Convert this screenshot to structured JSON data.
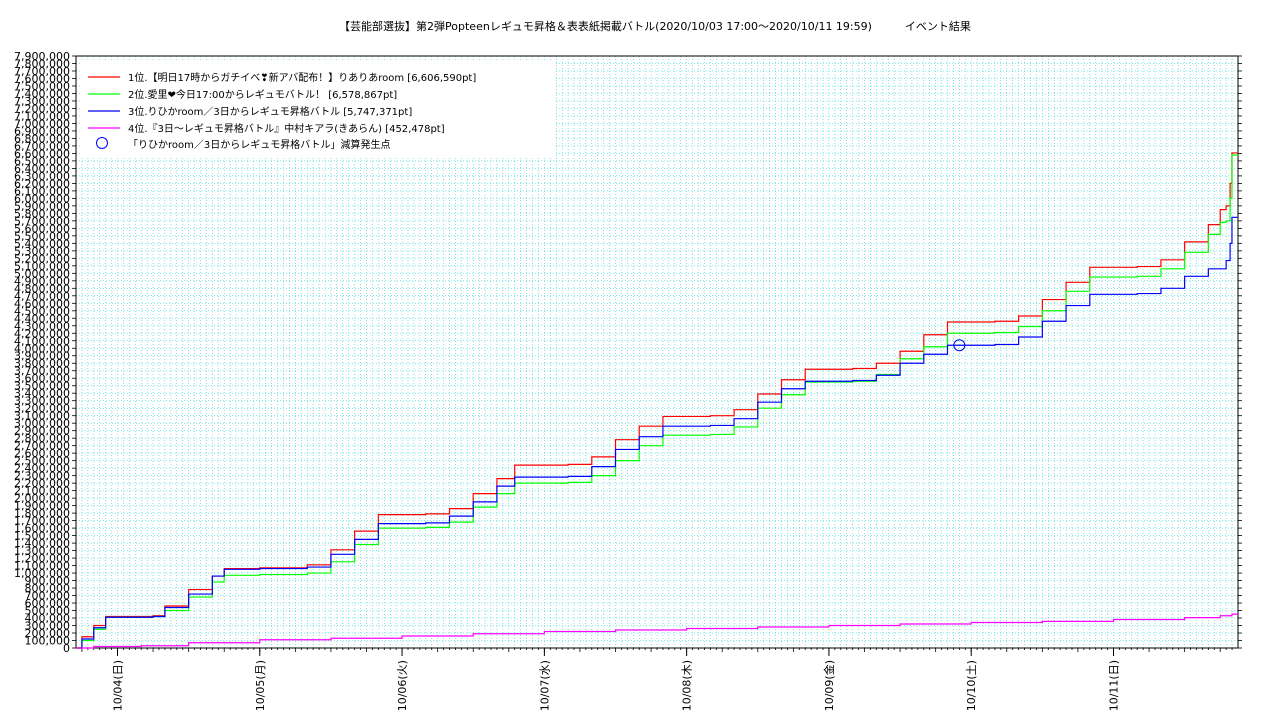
{
  "chart_data": {
    "type": "line",
    "title": "【芸能部選抜】第2弾Popteenレギュモ昇格＆表表紙掲載バトル(2020/10/03 17:00～2020/10/11 19:59)　　　イベント結果",
    "xlabel": "",
    "ylabel": "",
    "xlim": [
      "2020-10-03 17:00",
      "2020-10-11 21:00"
    ],
    "ylim": [
      0,
      7900000
    ],
    "y_tick_step": 100000,
    "x_tick_labels": [
      "10/04(日)",
      "10/05(月)",
      "10/06(火)",
      "10/07(水)",
      "10/08(木)",
      "10/09(金)",
      "10/10(土)",
      "10/11(日)"
    ],
    "x_tick_times": [
      "2020-10-04 00:00",
      "2020-10-05 00:00",
      "2020-10-06 00:00",
      "2020-10-07 00:00",
      "2020-10-08 00:00",
      "2020-10-09 00:00",
      "2020-10-10 00:00",
      "2020-10-11 00:00"
    ],
    "grid": true,
    "legend_position": "top-left",
    "series": [
      {
        "name": "1位.【明日17時からガチイベ❣新アバ配布！】りありあroom [6,606,590pt]",
        "color": "#ff0000",
        "step": true,
        "points": [
          [
            "2020-10-03 17:00",
            0
          ],
          [
            "2020-10-03 18:00",
            150000
          ],
          [
            "2020-10-03 20:00",
            300000
          ],
          [
            "2020-10-03 22:00",
            420000
          ],
          [
            "2020-10-04 06:00",
            430000
          ],
          [
            "2020-10-04 08:00",
            560000
          ],
          [
            "2020-10-04 12:00",
            780000
          ],
          [
            "2020-10-04 16:00",
            960000
          ],
          [
            "2020-10-04 18:00",
            1060000
          ],
          [
            "2020-10-05 00:00",
            1070000
          ],
          [
            "2020-10-05 08:00",
            1110000
          ],
          [
            "2020-10-05 12:00",
            1310000
          ],
          [
            "2020-10-05 16:00",
            1560000
          ],
          [
            "2020-10-05 20:00",
            1780000
          ],
          [
            "2020-10-06 04:00",
            1790000
          ],
          [
            "2020-10-06 08:00",
            1860000
          ],
          [
            "2020-10-06 12:00",
            2060000
          ],
          [
            "2020-10-06 16:00",
            2260000
          ],
          [
            "2020-10-06 19:00",
            2440000
          ],
          [
            "2020-10-07 04:00",
            2450000
          ],
          [
            "2020-10-07 08:00",
            2550000
          ],
          [
            "2020-10-07 12:00",
            2780000
          ],
          [
            "2020-10-07 16:00",
            2960000
          ],
          [
            "2020-10-07 20:00",
            3090000
          ],
          [
            "2020-10-08 04:00",
            3100000
          ],
          [
            "2020-10-08 08:00",
            3180000
          ],
          [
            "2020-10-08 12:00",
            3390000
          ],
          [
            "2020-10-08 16:00",
            3580000
          ],
          [
            "2020-10-08 20:00",
            3720000
          ],
          [
            "2020-10-09 04:00",
            3730000
          ],
          [
            "2020-10-09 08:00",
            3800000
          ],
          [
            "2020-10-09 12:00",
            3960000
          ],
          [
            "2020-10-09 16:00",
            4180000
          ],
          [
            "2020-10-09 20:00",
            4350000
          ],
          [
            "2020-10-10 04:00",
            4360000
          ],
          [
            "2020-10-10 08:00",
            4430000
          ],
          [
            "2020-10-10 12:00",
            4650000
          ],
          [
            "2020-10-10 16:00",
            4880000
          ],
          [
            "2020-10-10 20:00",
            5080000
          ],
          [
            "2020-10-11 04:00",
            5090000
          ],
          [
            "2020-10-11 08:00",
            5180000
          ],
          [
            "2020-10-11 12:00",
            5420000
          ],
          [
            "2020-10-11 16:00",
            5650000
          ],
          [
            "2020-10-11 18:00",
            5850000
          ],
          [
            "2020-10-11 19:00",
            5900000
          ],
          [
            "2020-10-11 19:40",
            6200000
          ],
          [
            "2020-10-11 19:59",
            6606590
          ],
          [
            "2020-10-11 21:00",
            6606590
          ]
        ]
      },
      {
        "name": "2位.愛里❤今日17:00からレギュモバトル！ [6,578,867pt]",
        "color": "#00ff00",
        "step": true,
        "points": [
          [
            "2020-10-03 17:00",
            0
          ],
          [
            "2020-10-03 18:00",
            100000
          ],
          [
            "2020-10-03 20:00",
            250000
          ],
          [
            "2020-10-03 22:00",
            410000
          ],
          [
            "2020-10-04 06:00",
            420000
          ],
          [
            "2020-10-04 08:00",
            500000
          ],
          [
            "2020-10-04 12:00",
            680000
          ],
          [
            "2020-10-04 16:00",
            880000
          ],
          [
            "2020-10-04 18:00",
            970000
          ],
          [
            "2020-10-05 00:00",
            980000
          ],
          [
            "2020-10-05 08:00",
            1000000
          ],
          [
            "2020-10-05 12:00",
            1150000
          ],
          [
            "2020-10-05 16:00",
            1380000
          ],
          [
            "2020-10-05 20:00",
            1600000
          ],
          [
            "2020-10-06 04:00",
            1610000
          ],
          [
            "2020-10-06 08:00",
            1680000
          ],
          [
            "2020-10-06 12:00",
            1880000
          ],
          [
            "2020-10-06 16:00",
            2060000
          ],
          [
            "2020-10-06 19:00",
            2200000
          ],
          [
            "2020-10-07 04:00",
            2210000
          ],
          [
            "2020-10-07 08:00",
            2300000
          ],
          [
            "2020-10-07 12:00",
            2500000
          ],
          [
            "2020-10-07 16:00",
            2700000
          ],
          [
            "2020-10-07 20:00",
            2840000
          ],
          [
            "2020-10-08 04:00",
            2850000
          ],
          [
            "2020-10-08 08:00",
            2950000
          ],
          [
            "2020-10-08 12:00",
            3200000
          ],
          [
            "2020-10-08 16:00",
            3380000
          ],
          [
            "2020-10-08 20:00",
            3550000
          ],
          [
            "2020-10-09 04:00",
            3560000
          ],
          [
            "2020-10-09 08:00",
            3650000
          ],
          [
            "2020-10-09 12:00",
            3860000
          ],
          [
            "2020-10-09 16:00",
            4020000
          ],
          [
            "2020-10-09 20:00",
            4200000
          ],
          [
            "2020-10-10 04:00",
            4210000
          ],
          [
            "2020-10-10 08:00",
            4290000
          ],
          [
            "2020-10-10 12:00",
            4500000
          ],
          [
            "2020-10-10 16:00",
            4760000
          ],
          [
            "2020-10-10 20:00",
            4950000
          ],
          [
            "2020-10-11 04:00",
            4960000
          ],
          [
            "2020-10-11 08:00",
            5060000
          ],
          [
            "2020-10-11 12:00",
            5280000
          ],
          [
            "2020-10-11 16:00",
            5520000
          ],
          [
            "2020-10-11 18:00",
            5680000
          ],
          [
            "2020-10-11 19:00",
            5700000
          ],
          [
            "2020-10-11 19:40",
            6000000
          ],
          [
            "2020-10-11 19:59",
            6578867
          ],
          [
            "2020-10-11 21:00",
            6578867
          ]
        ]
      },
      {
        "name": "3位.りひかroom／3日からレギュモ昇格バトル [5,747,371pt]",
        "color": "#0000ff",
        "step": true,
        "points": [
          [
            "2020-10-03 17:00",
            0
          ],
          [
            "2020-10-03 18:00",
            120000
          ],
          [
            "2020-10-03 20:00",
            270000
          ],
          [
            "2020-10-03 22:00",
            410000
          ],
          [
            "2020-10-04 06:00",
            420000
          ],
          [
            "2020-10-04 08:00",
            540000
          ],
          [
            "2020-10-04 12:00",
            720000
          ],
          [
            "2020-10-04 16:00",
            960000
          ],
          [
            "2020-10-04 18:00",
            1050000
          ],
          [
            "2020-10-05 00:00",
            1060000
          ],
          [
            "2020-10-05 08:00",
            1080000
          ],
          [
            "2020-10-05 12:00",
            1250000
          ],
          [
            "2020-10-05 16:00",
            1450000
          ],
          [
            "2020-10-05 20:00",
            1660000
          ],
          [
            "2020-10-06 04:00",
            1670000
          ],
          [
            "2020-10-06 08:00",
            1760000
          ],
          [
            "2020-10-06 12:00",
            1950000
          ],
          [
            "2020-10-06 16:00",
            2160000
          ],
          [
            "2020-10-06 19:00",
            2280000
          ],
          [
            "2020-10-07 04:00",
            2290000
          ],
          [
            "2020-10-07 08:00",
            2420000
          ],
          [
            "2020-10-07 12:00",
            2650000
          ],
          [
            "2020-10-07 16:00",
            2820000
          ],
          [
            "2020-10-07 20:00",
            2960000
          ],
          [
            "2020-10-08 04:00",
            2970000
          ],
          [
            "2020-10-08 08:00",
            3060000
          ],
          [
            "2020-10-08 12:00",
            3280000
          ],
          [
            "2020-10-08 16:00",
            3460000
          ],
          [
            "2020-10-08 20:00",
            3560000
          ],
          [
            "2020-10-09 04:00",
            3570000
          ],
          [
            "2020-10-09 08:00",
            3640000
          ],
          [
            "2020-10-09 12:00",
            3800000
          ],
          [
            "2020-10-09 16:00",
            3920000
          ],
          [
            "2020-10-09 20:00",
            4040000
          ],
          [
            "2020-10-10 04:00",
            4050000
          ],
          [
            "2020-10-10 08:00",
            4150000
          ],
          [
            "2020-10-10 12:00",
            4360000
          ],
          [
            "2020-10-10 16:00",
            4570000
          ],
          [
            "2020-10-10 20:00",
            4720000
          ],
          [
            "2020-10-11 04:00",
            4730000
          ],
          [
            "2020-10-11 08:00",
            4800000
          ],
          [
            "2020-10-11 12:00",
            4960000
          ],
          [
            "2020-10-11 16:00",
            5060000
          ],
          [
            "2020-10-11 19:00",
            5170000
          ],
          [
            "2020-10-11 19:40",
            5400000
          ],
          [
            "2020-10-11 19:59",
            5747371
          ],
          [
            "2020-10-11 21:00",
            5747371
          ]
        ]
      },
      {
        "name": "4位.『3日～レギュモ昇格バトル』中村キアラ(きあらん) [452,478pt]",
        "color": "#ff00ff",
        "step": true,
        "points": [
          [
            "2020-10-03 17:00",
            0
          ],
          [
            "2020-10-03 20:00",
            20000
          ],
          [
            "2020-10-04 04:00",
            30000
          ],
          [
            "2020-10-04 12:00",
            70000
          ],
          [
            "2020-10-05 00:00",
            110000
          ],
          [
            "2020-10-05 12:00",
            130000
          ],
          [
            "2020-10-06 00:00",
            160000
          ],
          [
            "2020-10-06 12:00",
            190000
          ],
          [
            "2020-10-07 00:00",
            220000
          ],
          [
            "2020-10-07 12:00",
            240000
          ],
          [
            "2020-10-08 00:00",
            260000
          ],
          [
            "2020-10-08 12:00",
            280000
          ],
          [
            "2020-10-09 00:00",
            300000
          ],
          [
            "2020-10-09 12:00",
            320000
          ],
          [
            "2020-10-10 00:00",
            340000
          ],
          [
            "2020-10-10 12:00",
            355000
          ],
          [
            "2020-10-11 00:00",
            380000
          ],
          [
            "2020-10-11 12:00",
            405000
          ],
          [
            "2020-10-11 18:00",
            430000
          ],
          [
            "2020-10-11 19:59",
            452478
          ],
          [
            "2020-10-11 21:00",
            452478
          ]
        ]
      }
    ],
    "annotations": [
      {
        "label": "「りひかroom／3日からレギュモ昇格バトル」減算発生点",
        "marker": "circle",
        "color": "#0000ff",
        "points": [
          [
            "2020-10-09 22:00",
            4040000
          ]
        ]
      }
    ]
  }
}
